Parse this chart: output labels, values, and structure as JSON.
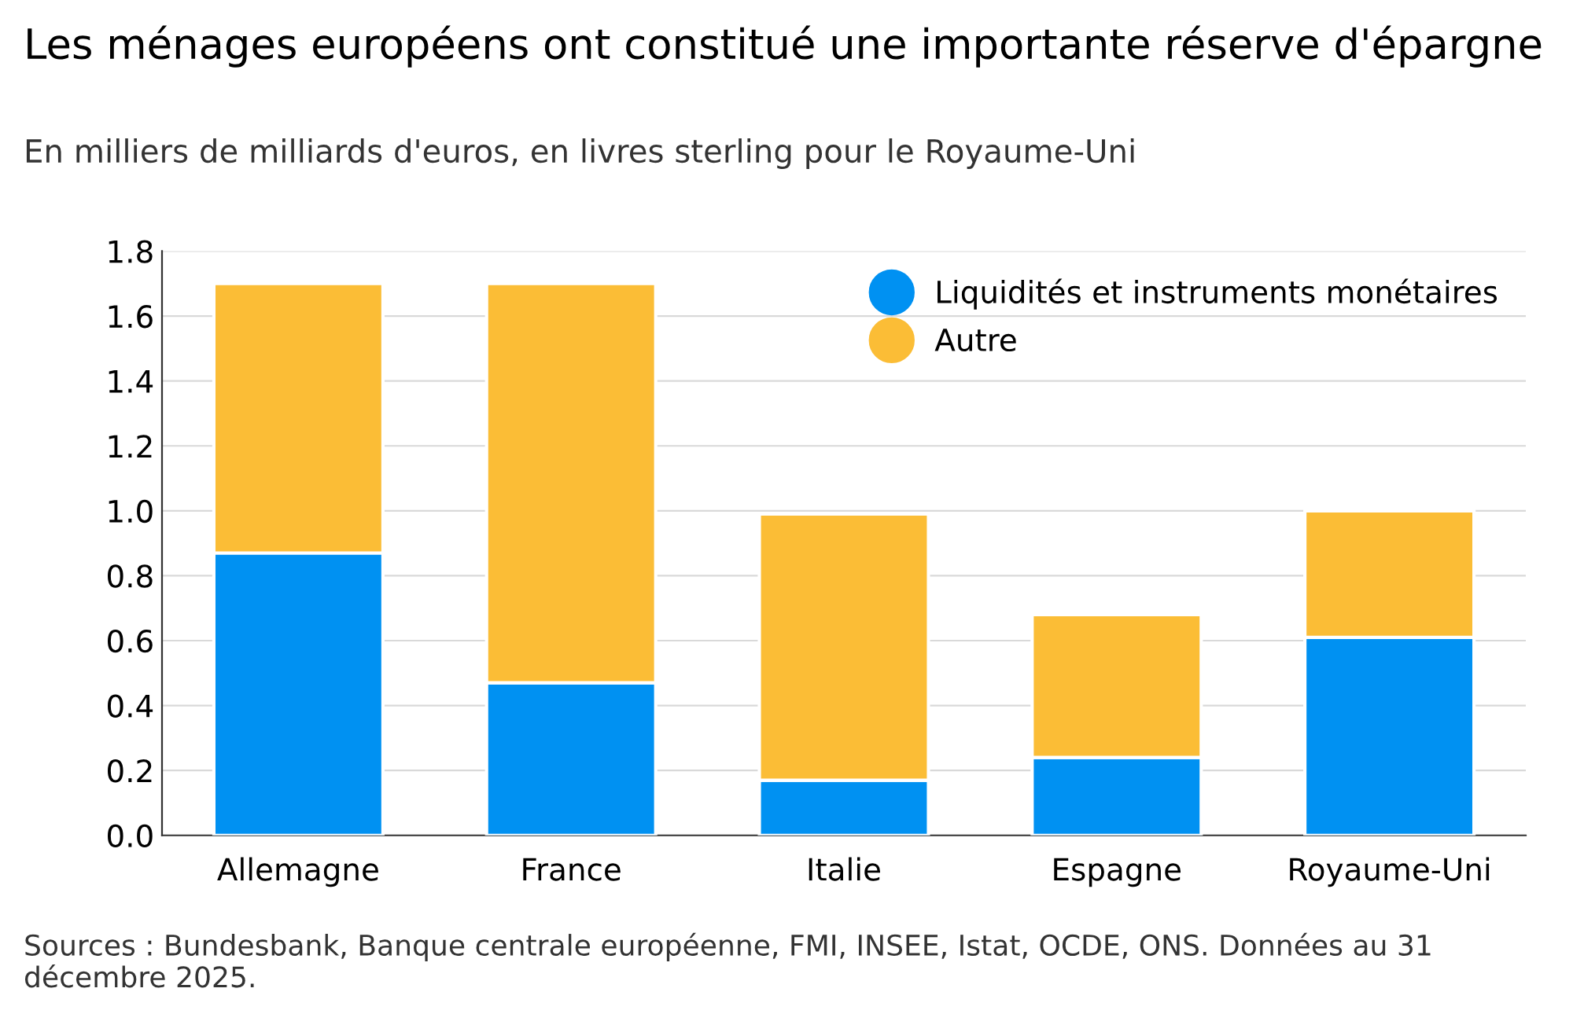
{
  "chart_data": {
    "type": "bar",
    "stacked": true,
    "title": "Les ménages européens ont constitué une importante réserve d'épargne",
    "subtitle": "En milliers de milliards d'euros, en livres sterling pour le Royaume-Uni",
    "categories": [
      "Allemagne",
      "France",
      "Italie",
      "Espagne",
      "Royaume-Uni"
    ],
    "series": [
      {
        "name": "Liquidités et instruments monétaires",
        "color": "#0091f2",
        "values": [
          0.87,
          0.47,
          0.17,
          0.24,
          0.61
        ]
      },
      {
        "name": "Autre",
        "color": "#fbbd36",
        "values": [
          0.83,
          1.23,
          0.82,
          0.44,
          0.39
        ]
      }
    ],
    "ylim": [
      0,
      1.8
    ],
    "yticks": [
      {
        "value": 0,
        "label": "0.0"
      },
      0.2,
      0.4,
      0.6,
      0.8,
      {
        "value": 1,
        "label": "1.0"
      },
      1.2,
      1.4,
      1.6,
      1.8
    ],
    "grid": "y",
    "legend": "top right",
    "marker": "circle",
    "annotations": [
      "Sources : Bundesbank, Banque centrale européenne, FMI, INSEE, Istat, OCDE, ONS. Données au 31 décembre 2025."
    ]
  }
}
